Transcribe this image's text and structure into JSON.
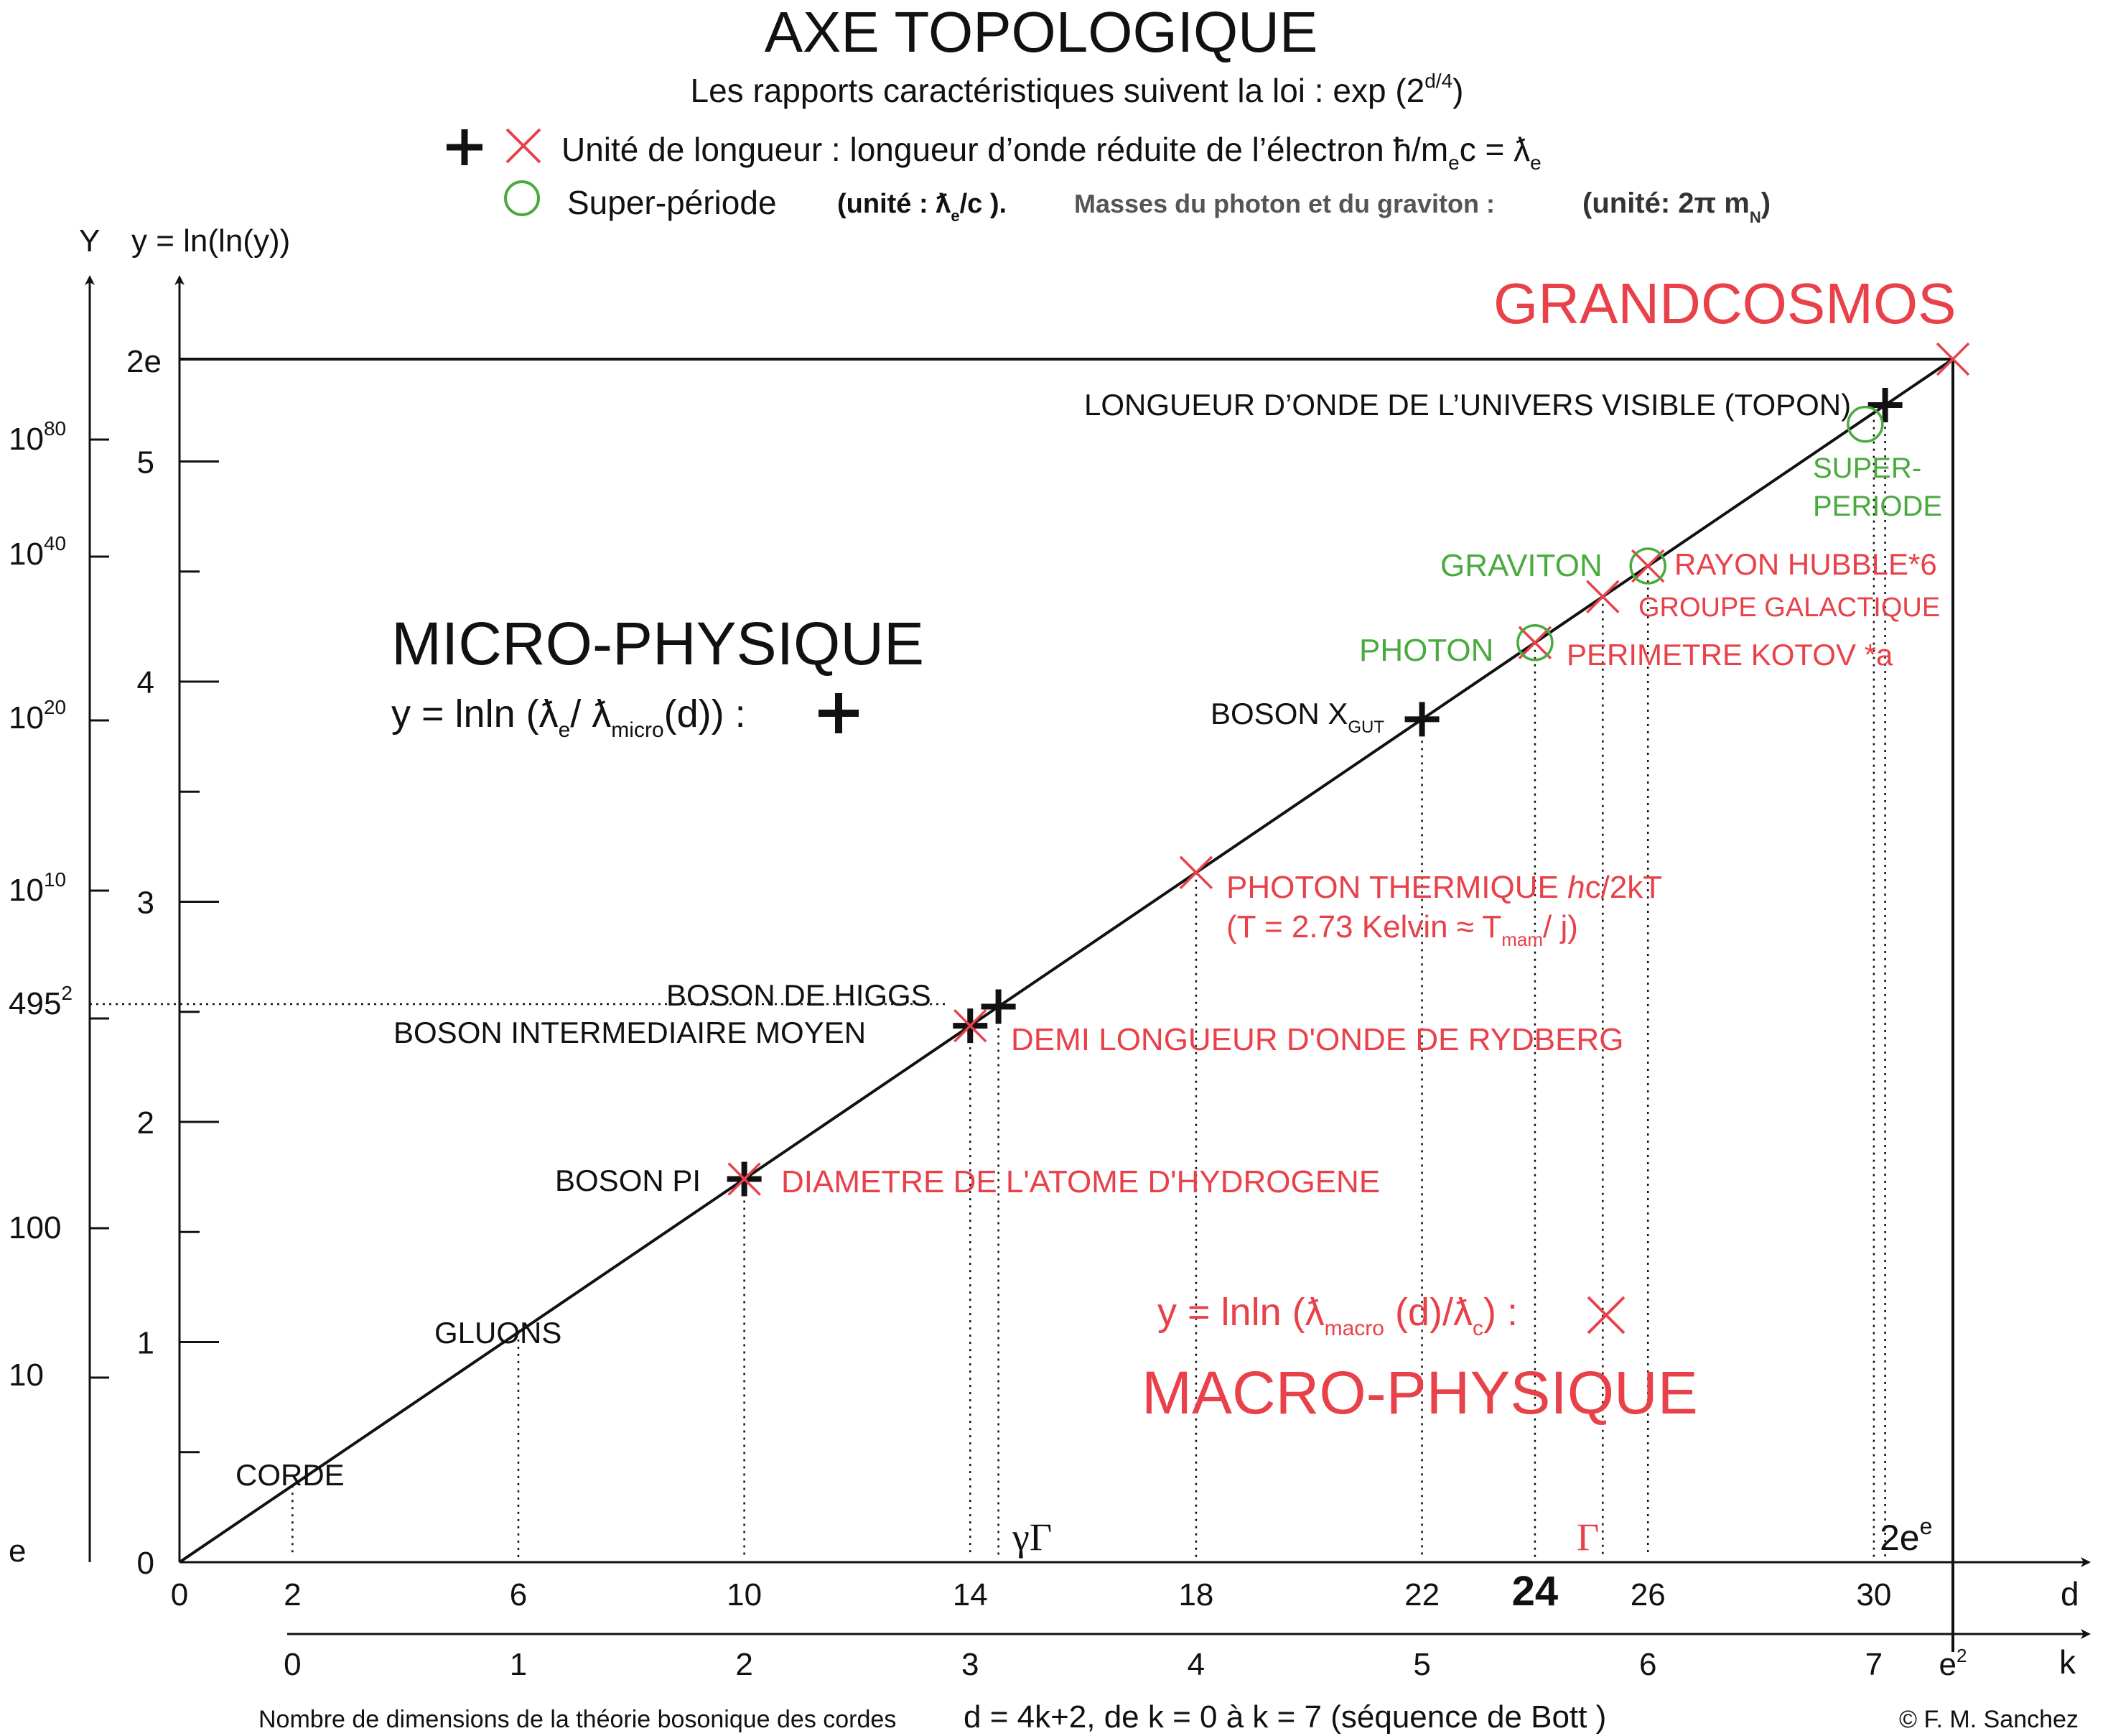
{
  "header": {
    "title": "AXE TOPOLOGIQUE",
    "subtitle": "Les rapports caractéristiques suivent la loi : exp (2",
    "subtitle_sup": "d/4",
    "subtitle_end": ")",
    "legend_unit_a": "Unité de longueur : longueur d’onde réduite de l’électron ħ/m",
    "legend_unit_sub": "e",
    "legend_unit_b": "c = ƛ",
    "legend_unit_sub2": "e",
    "legend_super_a": "Super-période",
    "legend_super_b": "(unité : ƛ",
    "legend_super_sub": "e",
    "legend_super_c": "/c ).",
    "legend_masses": "Masses du photon et du graviton :",
    "legend_masses_unit": "(unité: 2π m",
    "legend_masses_sub": "N",
    "legend_masses_end": ")"
  },
  "axes": {
    "Y_label": "Y",
    "y_label": "y  =  ln(ln(y))",
    "d_label": "d",
    "k_label": "k",
    "y_ticks": [
      "0",
      "1",
      "2",
      "3",
      "4",
      "5",
      "2e"
    ],
    "Y_ticks": [
      "e",
      "10",
      "100",
      "495",
      "10",
      "10",
      "10",
      "10"
    ],
    "Y_sups": [
      "",
      "",
      "",
      "2",
      "10",
      "20",
      "40",
      "80"
    ],
    "d_ticks": [
      "0",
      "2",
      "6",
      "10",
      "14",
      "18",
      "22",
      "24",
      "26",
      "30"
    ],
    "k_ticks": [
      "0",
      "1",
      "2",
      "3",
      "4",
      "5",
      "6",
      "7",
      "e"
    ],
    "k_e2_sup": "2",
    "gamma_gamma": "γΓ",
    "gamma": "Γ",
    "two_e_e": "2e",
    "two_e_e_sup": "e"
  },
  "regions": {
    "micro_title": "MICRO-PHYSIQUE",
    "micro_formula_a": "y = lnln (ƛ",
    "micro_formula_sub1": "e",
    "micro_formula_b": "/ ƛ",
    "micro_formula_sub2": "micro",
    "micro_formula_c": "(d)) :",
    "macro_title": "MACRO-PHYSIQUE",
    "macro_formula_a": "y = lnln (ƛ",
    "macro_formula_sub1": "macro",
    "macro_formula_b": " (d)/ƛ",
    "macro_formula_sub2": "c",
    "macro_formula_c": ") :",
    "grandcosmos": "GRANDCOSMOS"
  },
  "points": {
    "corde": "CORDE",
    "gluons": "GLUONS",
    "boson_pi": "BOSON PI",
    "hydrogen": "DIAMETRE DE L'ATOME D'HYDROGENE",
    "boson_higgs": "BOSON DE HIGGS",
    "boson_intermediaire": "BOSON INTERMEDIAIRE MOYEN",
    "rydberg": "DEMI LONGUEUR D'ONDE DE RYDBERG",
    "photon_thermique_a": "PHOTON THERMIQUE ",
    "photon_thermique_h": "h",
    "photon_thermique_b": "c/2kT",
    "photon_temp_a": "(T = 2.73  Kelvin ≈ T",
    "photon_temp_sub": "mam",
    "photon_temp_b": "/ j)",
    "boson_x": "BOSON X",
    "boson_x_sub": "GUT",
    "photon": "PHOTON",
    "perimetre_kotov": "PERIMETRE KOTOV *a",
    "graviton": "GRAVITON",
    "rayon_hubble": "RAYON HUBBLE*6",
    "groupe_galactique": "GROUPE GALACTIQUE",
    "super_periode_1": "SUPER-",
    "super_periode_2": "PERIODE",
    "topon": "LONGUEUR D’ONDE DE L’UNIVERS VISIBLE (TOPON)"
  },
  "footer": {
    "note": "Nombre de dimensions de la théorie bosonique des cordes",
    "formula": "d = 4k+2, de k = 0 à k = 7 (séquence de Bott )",
    "copyright": "© F. M. Sanchez"
  },
  "chart_data": {
    "type": "line",
    "x_axis": "d",
    "y_axis": "y",
    "xlim": [
      0,
      31.4
    ],
    "ylim": [
      0,
      5.4
    ],
    "line": [
      [
        0,
        0
      ],
      [
        31.4,
        5.4
      ]
    ],
    "k_relation": "d = 4k+2",
    "micro_points": [
      {
        "label": "BOSON PI",
        "d": 10,
        "y": 1.72
      },
      {
        "label": "BOSON INTERMEDIAIRE MOYEN",
        "d": 14,
        "y": 2.41
      },
      {
        "label": "BOSON DE HIGGS",
        "d": 14.5,
        "y": 2.5
      },
      {
        "label": "BOSON X GUT",
        "d": 22,
        "y": 3.78
      },
      {
        "label": "LONGUEUR D’ONDE DE L’UNIVERS VISIBLE (TOPON)",
        "d": 30.2,
        "y": 5.19
      }
    ],
    "macro_points": [
      {
        "label": "DIAMETRE DE L'ATOME D'HYDROGENE",
        "d": 10,
        "y": 1.72
      },
      {
        "label": "DEMI LONGUEUR D'ONDE DE RYDBERG",
        "d": 14,
        "y": 2.41
      },
      {
        "label": "PHOTON THERMIQUE hc/2kT",
        "d": 18,
        "y": 3.1
      },
      {
        "label": "PERIMETRE KOTOV *a",
        "d": 24,
        "y": 4.13
      },
      {
        "label": "GROUPE GALACTIQUE",
        "d": 25.2,
        "y": 4.34
      },
      {
        "label": "RAYON HUBBLE*6",
        "d": 26,
        "y": 4.48
      },
      {
        "label": "GRANDCOSMOS",
        "d": 31.4,
        "y": 5.4
      }
    ],
    "super_period_points": [
      {
        "label": "PHOTON",
        "d": 24,
        "y": 4.13
      },
      {
        "label": "GRAVITON",
        "d": 26,
        "y": 4.48
      },
      {
        "label": "SUPER-PERIODE",
        "d": 30,
        "y": 5.16
      }
    ],
    "labelled_d_only": [
      {
        "label": "CORDE",
        "d": 2
      },
      {
        "label": "GLUONS",
        "d": 6
      }
    ],
    "special_x": [
      {
        "label": "γΓ",
        "d": 14.5
      },
      {
        "label": "Γ",
        "d": 25.2
      },
      {
        "label": "2e^e",
        "d": 30.3
      }
    ],
    "colors": {
      "micro": "#111111",
      "macro": "#e8414a",
      "super_period": "#4aaa3f"
    }
  }
}
